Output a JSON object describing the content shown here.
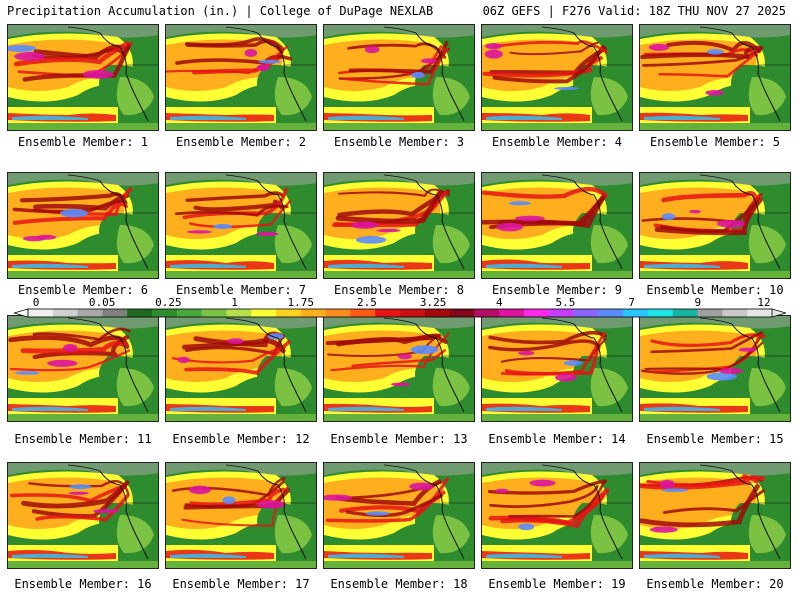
{
  "header": {
    "title_left": "Precipitation Accumulation (in.) | College of DuPage NEXLAB",
    "title_right": "06Z GEFS | F276 Valid: 18Z THU NOV 27 2025"
  },
  "panels": [
    {
      "label": "Ensemble Member: 1"
    },
    {
      "label": "Ensemble Member: 2"
    },
    {
      "label": "Ensemble Member: 3"
    },
    {
      "label": "Ensemble Member: 4"
    },
    {
      "label": "Ensemble Member: 5"
    },
    {
      "label": "Ensemble Member: 6"
    },
    {
      "label": "Ensemble Member: 7"
    },
    {
      "label": "Ensemble Member: 8"
    },
    {
      "label": "Ensemble Member: 9"
    },
    {
      "label": "Ensemble Member: 10"
    },
    {
      "label": "Ensemble Member: 11"
    },
    {
      "label": "Ensemble Member: 12"
    },
    {
      "label": "Ensemble Member: 13"
    },
    {
      "label": "Ensemble Member: 14"
    },
    {
      "label": "Ensemble Member: 15"
    },
    {
      "label": "Ensemble Member: 16"
    },
    {
      "label": "Ensemble Member: 17"
    },
    {
      "label": "Ensemble Member: 18"
    },
    {
      "label": "Ensemble Member: 19"
    },
    {
      "label": "Ensemble Member: 20"
    }
  ],
  "colorbar": {
    "tick_labels": [
      "0",
      "0.05",
      "0.25",
      "1",
      "1.75",
      "2.5",
      "3.25",
      "4",
      "5.5",
      "7",
      "9",
      "12"
    ],
    "colors": [
      "#f0f0f0",
      "#d0d0d0",
      "#a8a8a8",
      "#808080",
      "#1e6b1e",
      "#2e8b2e",
      "#49a83a",
      "#7cc242",
      "#b4e04a",
      "#ffff33",
      "#ffd21e",
      "#ffae1e",
      "#ff8c1e",
      "#ff5a14",
      "#e61414",
      "#c80f0f",
      "#a00a0a",
      "#820819",
      "#b40f64",
      "#dc14a0",
      "#ff28e6",
      "#c83cff",
      "#8c64ff",
      "#5a8cff",
      "#28c8ff",
      "#1ee6e6",
      "#14b4a0",
      "#a0a0a0",
      "#c8c8c8",
      "#e6e6e6"
    ]
  },
  "map_colors": {
    "land": "#2e8b2e",
    "light_green": "#7cc242",
    "yellow": "#ffff33",
    "orange": "#ffae1e",
    "red": "#e61414",
    "dark_red": "#a00a0a",
    "magenta": "#dc14a0",
    "blue": "#5a8cff",
    "cyan": "#28c8ff",
    "gray": "#a8a8a8"
  }
}
